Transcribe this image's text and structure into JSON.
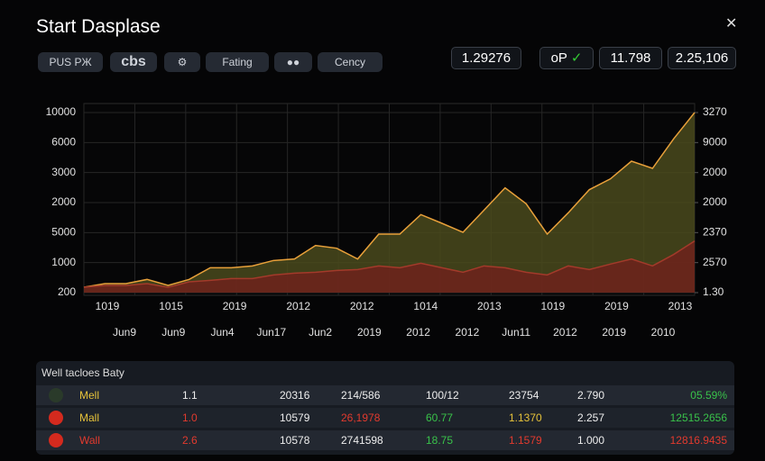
{
  "header": {
    "title": "Start Dasplase",
    "close": "✕",
    "buttons": [
      "PUS PЖ",
      "cbs",
      "Fating",
      "Cency"
    ],
    "stats": [
      "1.29276",
      "oP",
      "11.798",
      "2.25,106"
    ]
  },
  "chart_data": {
    "type": "area",
    "ylim": [
      0,
      6
    ],
    "yticks": [
      {
        "value": 6,
        "label": "10000"
      },
      {
        "value": 5,
        "label": "6000"
      },
      {
        "value": 4,
        "label": "3000"
      },
      {
        "value": 3,
        "label": "2000"
      },
      {
        "value": 2,
        "label": "5000"
      },
      {
        "value": 1,
        "label": "1000"
      },
      {
        "value": 0,
        "label": "200"
      }
    ],
    "y2lim": [
      0,
      6
    ],
    "y2ticks": [
      {
        "value": 6,
        "label": "3270"
      },
      {
        "value": 5,
        "label": "9000"
      },
      {
        "value": 4,
        "label": "2000"
      },
      {
        "value": 3,
        "label": "2000"
      },
      {
        "value": 2,
        "label": "2370"
      },
      {
        "value": 1,
        "label": "2570"
      },
      {
        "value": 0,
        "label": "1.30"
      }
    ],
    "x_labels_top": [
      "1019",
      "1015",
      "2019",
      "2012",
      "2012",
      "1014",
      "2013",
      "1019",
      "2019",
      "2013"
    ],
    "x_labels_bottom": [
      "Jun9",
      "Jun9",
      "Jun4",
      "Jun17",
      "Jun2",
      "2019",
      "2012",
      "2012",
      "Jun11",
      "2012",
      "2019",
      "2010"
    ],
    "series": [
      {
        "color": "#e8a03a",
        "fill": "#4a4a1c",
        "values": [
          0.18,
          0.3,
          0.3,
          0.44,
          0.24,
          0.44,
          0.83,
          0.83,
          0.89,
          1.07,
          1.12,
          1.57,
          1.48,
          1.12,
          1.95,
          1.95,
          2.6,
          2.31,
          2.01,
          2.75,
          3.49,
          2.96,
          1.95,
          2.66,
          3.43,
          3.79,
          4.38,
          4.14,
          5.12,
          6
        ]
      },
      {
        "color": "#a33a2a",
        "fill": "#6e221c",
        "values": [
          0.18,
          0.24,
          0.24,
          0.3,
          0.18,
          0.36,
          0.41,
          0.47,
          0.47,
          0.59,
          0.65,
          0.68,
          0.74,
          0.77,
          0.89,
          0.83,
          0.98,
          0.83,
          0.68,
          0.89,
          0.83,
          0.68,
          0.59,
          0.89,
          0.77,
          0.95,
          1.12,
          0.89,
          1.27,
          1.72
        ]
      }
    ]
  },
  "table": {
    "title": "Well tacloes Baty",
    "rows": [
      [
        "Mell",
        "1.1",
        "20316",
        "214/586",
        "100/12",
        "23754",
        "2.790",
        "05.59%"
      ],
      [
        "Mall",
        "1.0",
        "10579",
        "26,1978",
        "60.77",
        "1.1370",
        "2.257",
        "12515.2656"
      ],
      [
        "Wall",
        "2.6",
        "10578",
        "2741598",
        "18.75",
        "1.1579",
        "1.000",
        "12816.9435"
      ]
    ]
  }
}
